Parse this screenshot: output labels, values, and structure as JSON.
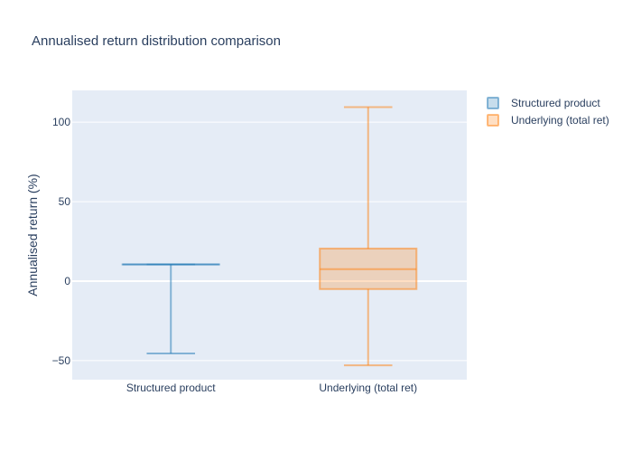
{
  "chart_data": {
    "type": "box",
    "title": "Annualised return distribution comparison",
    "xlabel": "",
    "ylabel": "Annualised return (%)",
    "ylim": [
      -62,
      120
    ],
    "yticks": [
      -50,
      0,
      50,
      100
    ],
    "ytick_labels": [
      "−50",
      "0",
      "50",
      "100"
    ],
    "categories": [
      "Structured product",
      "Underlying (total ret)"
    ],
    "grid": true,
    "legend_position": "top-right",
    "series": [
      {
        "name": "Structured product",
        "color": "#1f77b4",
        "min": -45.5,
        "q1": 10.5,
        "median": 10.5,
        "q3": 10.5,
        "max": 10.5
      },
      {
        "name": "Underlying (total ret)",
        "color": "#ff7f0e",
        "min": -53,
        "q1": -5,
        "median": 7.5,
        "q3": 20.5,
        "max": 109.5
      }
    ]
  }
}
